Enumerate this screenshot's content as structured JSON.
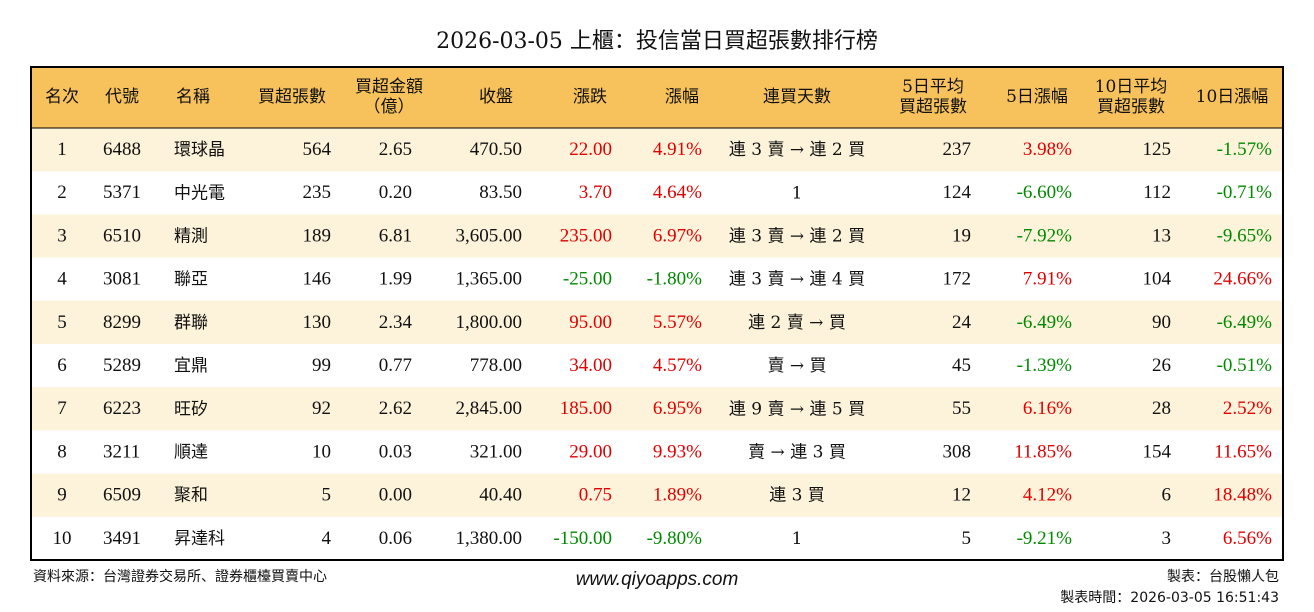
{
  "title": "2026-03-05 上櫃：投信當日買超張數排行榜",
  "table": {
    "headers": [
      [
        "名次"
      ],
      [
        "代號"
      ],
      [
        "名稱"
      ],
      [
        "買超張數"
      ],
      [
        "買超金額",
        "（億）"
      ],
      [
        "收盤"
      ],
      [
        "漲跌"
      ],
      [
        "漲幅"
      ],
      [
        "連買天數"
      ],
      [
        "5日平均",
        "買超張數"
      ],
      [
        "5日漲幅"
      ],
      [
        "10日平均",
        "買超張數"
      ],
      [
        "10日漲幅"
      ]
    ],
    "rows": [
      [
        "1",
        "6488",
        "環球晶",
        "564",
        "2.65",
        "470.50",
        "22.00",
        "4.91%",
        "連 3 賣 → 連 2 買",
        "237",
        "3.98%",
        "125",
        "-1.57%"
      ],
      [
        "2",
        "5371",
        "中光電",
        "235",
        "0.20",
        "83.50",
        "3.70",
        "4.64%",
        "1",
        "124",
        "-6.60%",
        "112",
        "-0.71%"
      ],
      [
        "3",
        "6510",
        "精測",
        "189",
        "6.81",
        "3,605.00",
        "235.00",
        "6.97%",
        "連 3 賣 → 連 2 買",
        "19",
        "-7.92%",
        "13",
        "-9.65%"
      ],
      [
        "4",
        "3081",
        "聯亞",
        "146",
        "1.99",
        "1,365.00",
        "-25.00",
        "-1.80%",
        "連 3 賣 → 連 4 買",
        "172",
        "7.91%",
        "104",
        "24.66%"
      ],
      [
        "5",
        "8299",
        "群聯",
        "130",
        "2.34",
        "1,800.00",
        "95.00",
        "5.57%",
        "連 2 賣 → 買",
        "24",
        "-6.49%",
        "90",
        "-6.49%"
      ],
      [
        "6",
        "5289",
        "宜鼎",
        "99",
        "0.77",
        "778.00",
        "34.00",
        "4.57%",
        "賣 → 買",
        "45",
        "-1.39%",
        "26",
        "-0.51%"
      ],
      [
        "7",
        "6223",
        "旺矽",
        "92",
        "2.62",
        "2,845.00",
        "185.00",
        "6.95%",
        "連 9 賣 → 連 5 買",
        "55",
        "6.16%",
        "28",
        "2.52%"
      ],
      [
        "8",
        "3211",
        "順達",
        "10",
        "0.03",
        "321.00",
        "29.00",
        "9.93%",
        "賣 → 連 3 買",
        "308",
        "11.85%",
        "154",
        "11.65%"
      ],
      [
        "9",
        "6509",
        "聚和",
        "5",
        "0.00",
        "40.40",
        "0.75",
        "1.89%",
        "連 3 買",
        "12",
        "4.12%",
        "6",
        "18.48%"
      ],
      [
        "10",
        "3491",
        "昇達科",
        "4",
        "0.06",
        "1,380.00",
        "-150.00",
        "-9.80%",
        "1",
        "5",
        "-9.21%",
        "3",
        "6.56%"
      ]
    ]
  },
  "footer": {
    "source": "資料來源：台灣證券交易所、證券櫃檯買賣中心",
    "website": "www.qiyoapps.com",
    "author": "製表：台股懶人包",
    "time": "製表時間：2026-03-05 16:51:43"
  }
}
